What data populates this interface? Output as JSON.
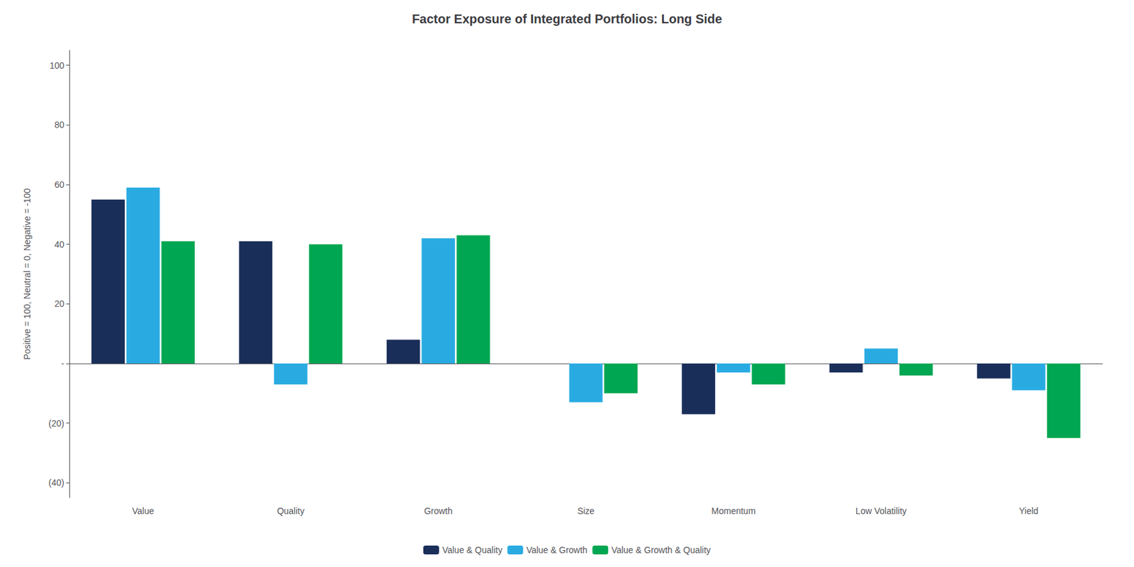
{
  "chart_data": {
    "type": "bar",
    "title": "Factor Exposure of Integrated Portfolios: Long Side",
    "categories": [
      "Value",
      "Quality",
      "Growth",
      "Size",
      "Momentum",
      "Low Volatility",
      "Yield"
    ],
    "series": [
      {
        "name": "Value & Quality",
        "color": "#1a2e5a",
        "values": [
          55,
          41,
          8,
          0,
          -17,
          -3,
          -5
        ]
      },
      {
        "name": "Value & Growth",
        "color": "#29abe2",
        "values": [
          59,
          -7,
          42,
          -13,
          -3,
          5,
          -9
        ]
      },
      {
        "name": "Value & Growth & Quality",
        "color": "#00a651",
        "values": [
          41,
          40,
          43,
          -10,
          -7,
          -4,
          -25
        ]
      }
    ],
    "ylabel": "Positive = 100, Neutral = 0, Negative = -100",
    "ylim": [
      -45,
      105
    ],
    "yticks": [
      {
        "value": -40,
        "label": "(40)"
      },
      {
        "value": -20,
        "label": "(20)"
      },
      {
        "value": 0,
        "label": "-"
      },
      20,
      40,
      60,
      80,
      100
    ],
    "grid": false,
    "legend": "bottom"
  }
}
